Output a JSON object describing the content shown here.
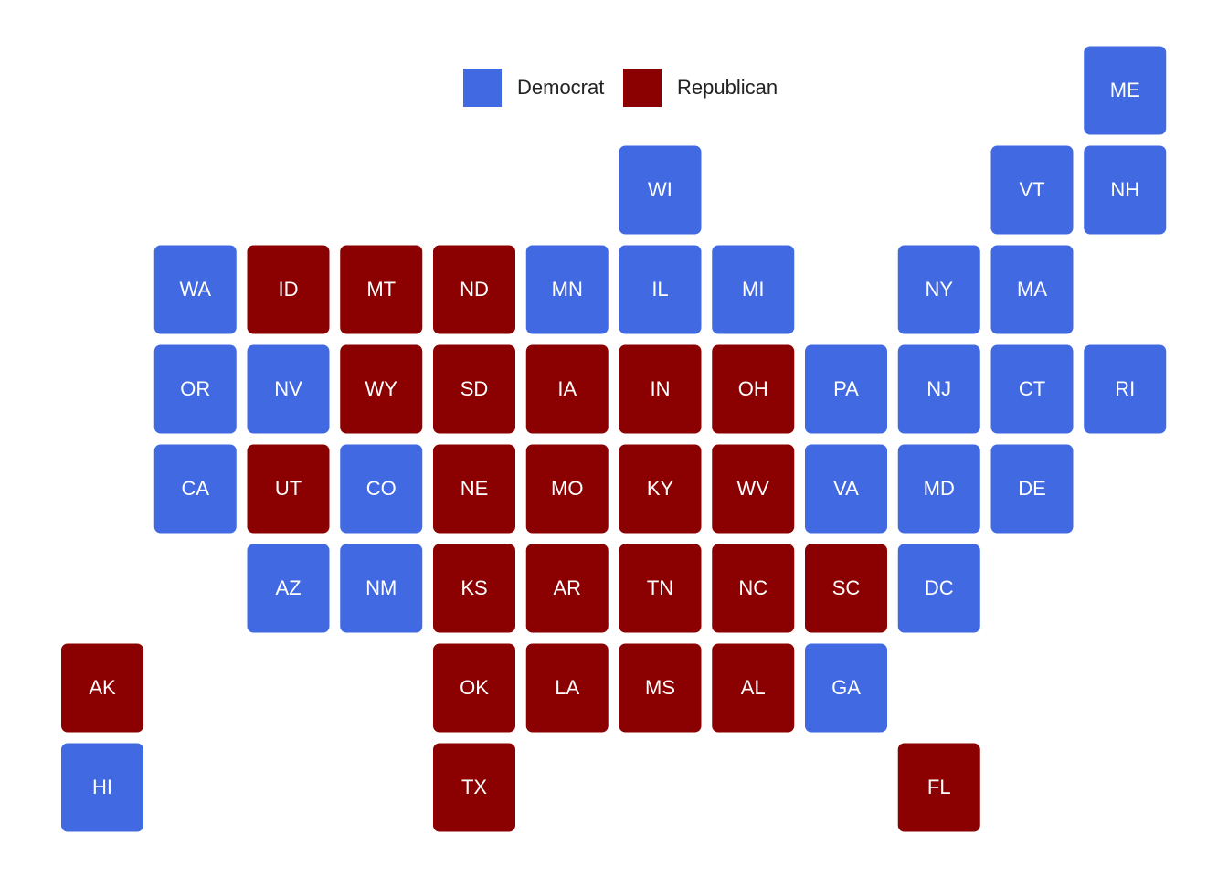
{
  "legend": [
    {
      "label": "Democrat",
      "color": "#4169e1"
    },
    {
      "label": "Republican",
      "color": "#8b0000"
    }
  ],
  "tiles": [
    {
      "label": "ME",
      "party": "Democrat"
    },
    {
      "label": "WI",
      "party": "Democrat"
    },
    {
      "label": "VT",
      "party": "Democrat"
    },
    {
      "label": "NH",
      "party": "Democrat"
    },
    {
      "label": "WA",
      "party": "Democrat"
    },
    {
      "label": "ID",
      "party": "Republican"
    },
    {
      "label": "MT",
      "party": "Republican"
    },
    {
      "label": "ND",
      "party": "Republican"
    },
    {
      "label": "MN",
      "party": "Democrat"
    },
    {
      "label": "IL",
      "party": "Democrat"
    },
    {
      "label": "MI",
      "party": "Democrat"
    },
    {
      "label": "NY",
      "party": "Democrat"
    },
    {
      "label": "MA",
      "party": "Democrat"
    },
    {
      "label": "OR",
      "party": "Democrat"
    },
    {
      "label": "NV",
      "party": "Democrat"
    },
    {
      "label": "WY",
      "party": "Republican"
    },
    {
      "label": "SD",
      "party": "Republican"
    },
    {
      "label": "IA",
      "party": "Republican"
    },
    {
      "label": "IN",
      "party": "Republican"
    },
    {
      "label": "OH",
      "party": "Republican"
    },
    {
      "label": "PA",
      "party": "Democrat"
    },
    {
      "label": "NJ",
      "party": "Democrat"
    },
    {
      "label": "CT",
      "party": "Democrat"
    },
    {
      "label": "RI",
      "party": "Democrat"
    },
    {
      "label": "CA",
      "party": "Democrat"
    },
    {
      "label": "UT",
      "party": "Republican"
    },
    {
      "label": "CO",
      "party": "Democrat"
    },
    {
      "label": "NE",
      "party": "Republican"
    },
    {
      "label": "MO",
      "party": "Republican"
    },
    {
      "label": "KY",
      "party": "Republican"
    },
    {
      "label": "WV",
      "party": "Republican"
    },
    {
      "label": "VA",
      "party": "Democrat"
    },
    {
      "label": "MD",
      "party": "Democrat"
    },
    {
      "label": "DE",
      "party": "Democrat"
    },
    {
      "label": "AZ",
      "party": "Democrat"
    },
    {
      "label": "NM",
      "party": "Democrat"
    },
    {
      "label": "KS",
      "party": "Republican"
    },
    {
      "label": "AR",
      "party": "Republican"
    },
    {
      "label": "TN",
      "party": "Republican"
    },
    {
      "label": "NC",
      "party": "Republican"
    },
    {
      "label": "SC",
      "party": "Republican"
    },
    {
      "label": "DC",
      "party": "Democrat"
    },
    {
      "label": "AK",
      "party": "Republican"
    },
    {
      "label": "OK",
      "party": "Republican"
    },
    {
      "label": "LA",
      "party": "Republican"
    },
    {
      "label": "MS",
      "party": "Republican"
    },
    {
      "label": "AL",
      "party": "Republican"
    },
    {
      "label": "GA",
      "party": "Democrat"
    },
    {
      "label": "HI",
      "party": "Democrat"
    },
    {
      "label": "TX",
      "party": "Republican"
    },
    {
      "label": "FL",
      "party": "Republican"
    }
  ]
}
